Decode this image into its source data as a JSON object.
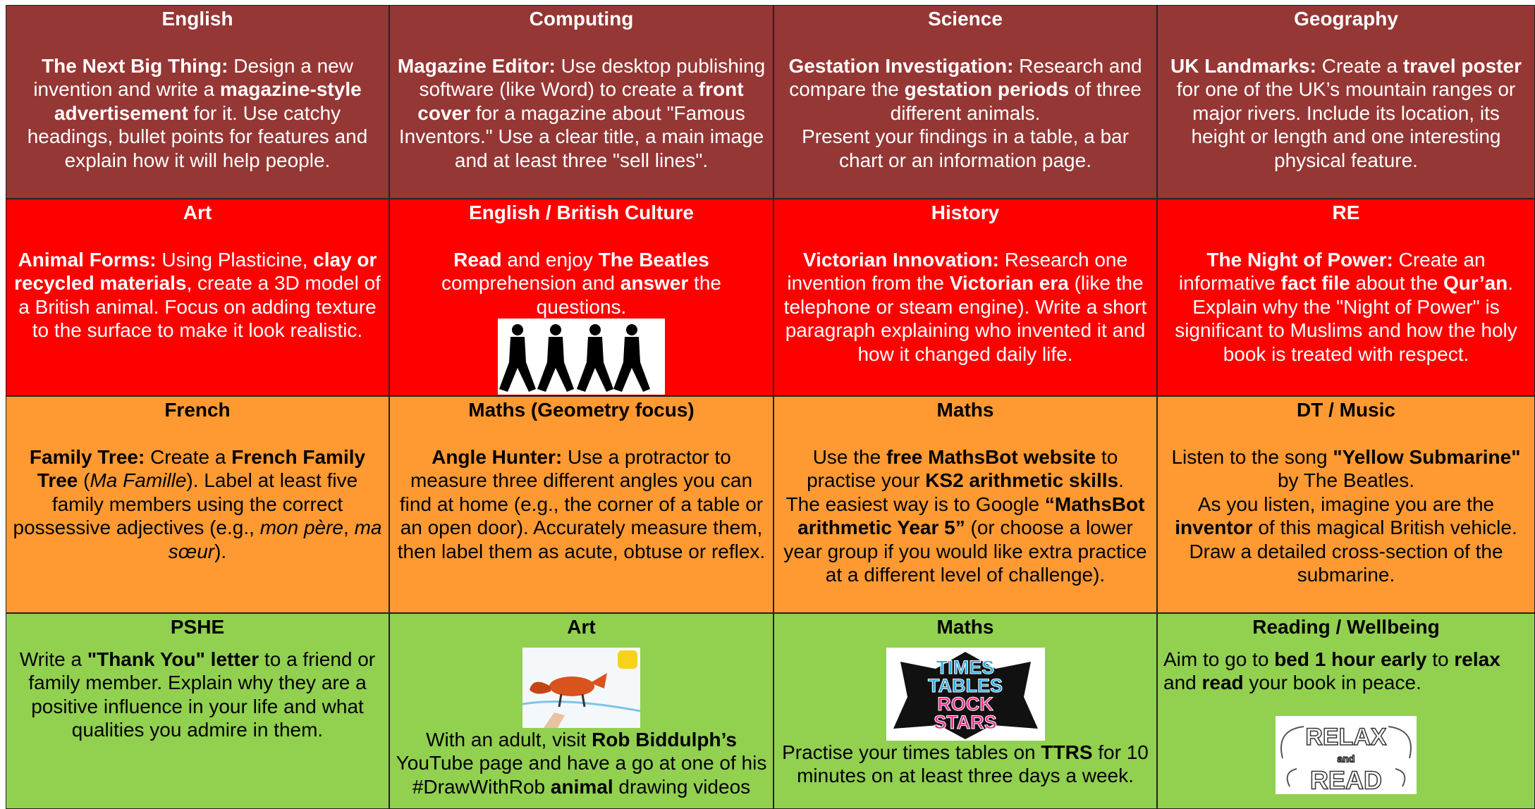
{
  "grid": {
    "rows": [
      {
        "cells": [
          {
            "subject": "English",
            "body": [
              [
                {
                  "text": "The Next Big Thing:",
                  "bold": true
                },
                {
                  "text": " Design a new invention and write a "
                },
                {
                  "text": "magazine-style advertisement",
                  "bold": true
                },
                {
                  "text": " for it. Use catchy headings, bullet points for features and explain how it will help people."
                }
              ]
            ]
          },
          {
            "subject": "Computing",
            "body": [
              [
                {
                  "text": "Magazine Editor:",
                  "bold": true
                },
                {
                  "text": " Use desktop publishing software (like Word) to create a "
                },
                {
                  "text": "front cover",
                  "bold": true
                },
                {
                  "text": " for a magazine about \"Famous Inventors.\" Use a clear title, a main image and at least three \"sell lines\"."
                }
              ]
            ]
          },
          {
            "subject": "Science",
            "body": [
              [
                {
                  "text": "Gestation Investigation:",
                  "bold": true
                },
                {
                  "text": " Research and compare the "
                },
                {
                  "text": "gestation periods",
                  "bold": true
                },
                {
                  "text": " of three different animals."
                }
              ],
              [
                {
                  "text": "Present your findings in a table, a bar chart or an information page."
                }
              ]
            ]
          },
          {
            "subject": "Geography",
            "body": [
              [
                {
                  "text": "UK Landmarks:",
                  "bold": true
                },
                {
                  "text": " Create a "
                },
                {
                  "text": "travel poster",
                  "bold": true
                },
                {
                  "text": " for one of the UK’s mountain ranges or major rivers. Include its location, its height or length and one interesting physical feature."
                }
              ]
            ]
          }
        ]
      },
      {
        "cells": [
          {
            "subject": "Art",
            "body": [
              [
                {
                  "text": "Animal Forms:",
                  "bold": true
                },
                {
                  "text": " Using Plasticine, "
                },
                {
                  "text": "clay or recycled materials",
                  "bold": true
                },
                {
                  "text": ", create a 3D model of a British animal. Focus on adding texture to the surface to make it look realistic."
                }
              ]
            ]
          },
          {
            "subject": "English / British Culture",
            "body": [
              [
                {
                  "text": "Read",
                  "bold": true
                },
                {
                  "text": " and enjoy "
                },
                {
                  "text": "The Beatles",
                  "bold": true
                },
                {
                  "text": " comprehension and "
                },
                {
                  "text": "answer",
                  "bold": true
                },
                {
                  "text": " the questions."
                }
              ]
            ]
          },
          {
            "subject": "History",
            "body": [
              [
                {
                  "text": "Victorian Innovation:",
                  "bold": true
                },
                {
                  "text": " Research one invention from the "
                },
                {
                  "text": "Victorian era",
                  "bold": true
                },
                {
                  "text": " (like the telephone or steam engine). Write a short paragraph explaining who invented it and how it changed daily life."
                }
              ]
            ]
          },
          {
            "subject": "RE",
            "body": [
              [
                {
                  "text": "The Night of Power:",
                  "bold": true
                },
                {
                  "text": " Create an informative "
                },
                {
                  "text": "fact file",
                  "bold": true
                },
                {
                  "text": " about the "
                },
                {
                  "text": "Qur’an",
                  "bold": true
                },
                {
                  "text": ". Explain why the \"Night of Power\" is significant to Muslims and how the holy book is treated with respect."
                }
              ]
            ]
          }
        ]
      },
      {
        "cells": [
          {
            "subject": "French",
            "body": [
              [
                {
                  "text": "Family Tree:",
                  "bold": true
                },
                {
                  "text": " Create a "
                },
                {
                  "text": "French Family Tree",
                  "bold": true
                },
                {
                  "text": " ("
                },
                {
                  "text": "Ma Famille",
                  "italic": true
                },
                {
                  "text": "). Label at least five family members using the correct possessive adjectives (e.g., "
                },
                {
                  "text": "mon père",
                  "italic": true
                },
                {
                  "text": ", "
                },
                {
                  "text": "ma sœur",
                  "italic": true
                },
                {
                  "text": ")."
                }
              ]
            ]
          },
          {
            "subject": "Maths (Geometry focus)",
            "body": [
              [
                {
                  "text": "Angle Hunter:",
                  "bold": true
                },
                {
                  "text": " Use a protractor to measure three different angles you can find at home (e.g., the corner of a table or an open door). Accurately measure them, then label them as acute, obtuse or reflex."
                }
              ]
            ]
          },
          {
            "subject": "Maths",
            "body": [
              [
                {
                  "text": "Use the "
                },
                {
                  "text": "free MathsBot website",
                  "bold": true
                },
                {
                  "text": " to practise your "
                },
                {
                  "text": "KS2 arithmetic skills",
                  "bold": true
                },
                {
                  "text": "."
                }
              ],
              [
                {
                  "text": "The easiest way is to Google "
                },
                {
                  "text": "“MathsBot arithmetic Year 5”",
                  "bold": true
                },
                {
                  "text": " (or choose a lower year group if you would like extra practice at a different level of challenge)."
                }
              ]
            ]
          },
          {
            "subject": "DT / Music",
            "body": [
              [
                {
                  "text": "Listen to the song "
                },
                {
                  "text": "\"Yellow Submarine\"",
                  "bold": true
                },
                {
                  "text": " by The Beatles."
                }
              ],
              [
                {
                  "text": "As you listen, imagine you are the "
                },
                {
                  "text": "inventor",
                  "bold": true
                },
                {
                  "text": " of this magical British vehicle. Draw a detailed cross-section of the submarine."
                }
              ]
            ]
          }
        ]
      },
      {
        "cells": [
          {
            "subject": "PSHE",
            "body": [
              [
                {
                  "text": "Write a "
                },
                {
                  "text": "\"Thank You\" letter",
                  "bold": true
                },
                {
                  "text": " to a friend or family member. Explain why they are a positive influence in your life and what qualities you admire in them."
                }
              ]
            ]
          },
          {
            "subject": "Art",
            "body": [
              [
                {
                  "text": "With an adult, visit "
                },
                {
                  "text": "Rob Biddulph’s",
                  "bold": true
                },
                {
                  "text": " YouTube page and have a go at one of his #DrawWithRob "
                },
                {
                  "text": "animal",
                  "bold": true
                },
                {
                  "text": " drawing videos"
                }
              ]
            ]
          },
          {
            "subject": "Maths",
            "image_text": [
              "TIMES",
              "TABLES",
              "ROCK",
              "STARS"
            ],
            "body": [
              [
                {
                  "text": "Practise your times tables on "
                },
                {
                  "text": "TTRS",
                  "bold": true
                },
                {
                  "text": " for 10 minutes on at least three days a week."
                }
              ]
            ]
          },
          {
            "subject": "Reading / Wellbeing",
            "image_text": [
              "RELAX",
              "and",
              "READ"
            ],
            "body": [
              [
                {
                  "text": "Aim to go to "
                },
                {
                  "text": "bed 1 hour early",
                  "bold": true
                },
                {
                  "text": " to "
                },
                {
                  "text": "relax",
                  "bold": true
                },
                {
                  "text": " and "
                },
                {
                  "text": "read",
                  "bold": true
                },
                {
                  "text": " your book in peace."
                }
              ]
            ]
          }
        ]
      }
    ]
  }
}
